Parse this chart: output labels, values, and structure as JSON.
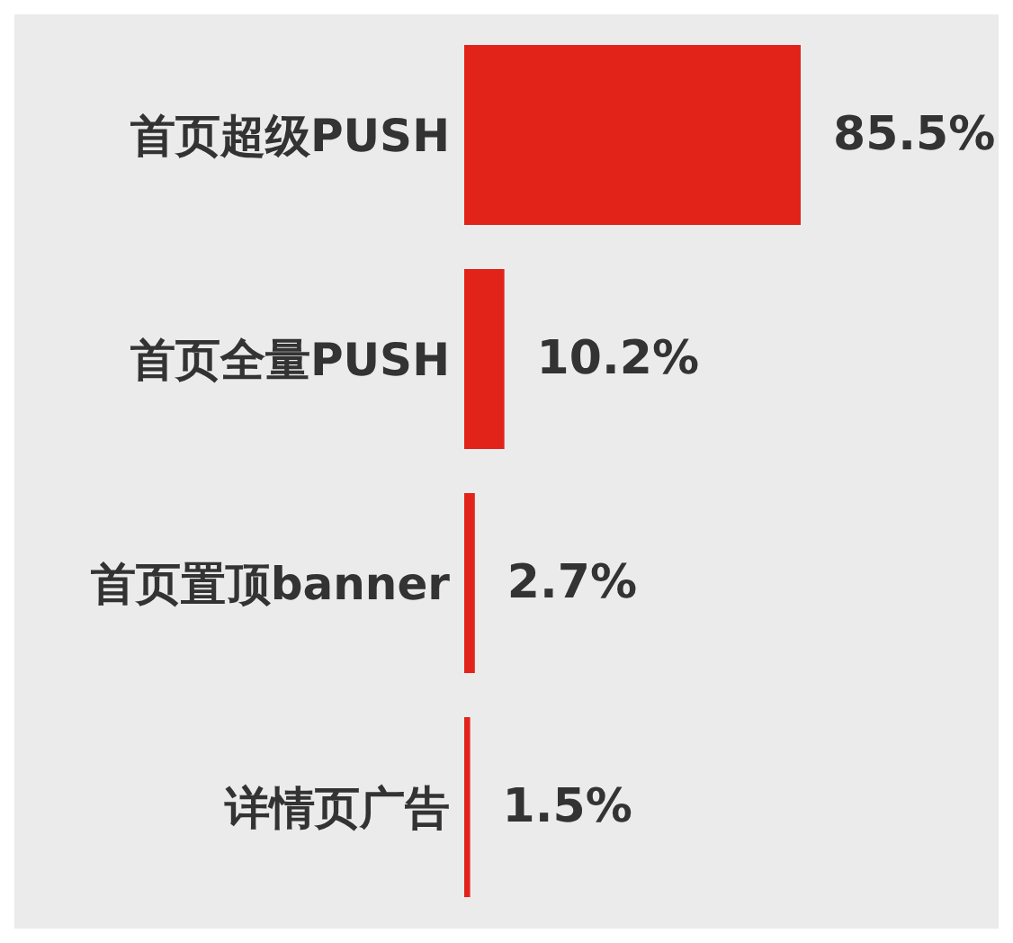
{
  "chart_data": {
    "type": "bar",
    "orientation": "horizontal",
    "categories": [
      "首页超级PUSH",
      "首页全量PUSH",
      "首页置顶banner",
      "详情页广告"
    ],
    "values": [
      85.5,
      10.2,
      2.7,
      1.5
    ],
    "color": "#e2231a",
    "value_labels": [
      "85.5%",
      "10.2%",
      "2.7%",
      "1.5%"
    ],
    "grid": false,
    "legend": false
  }
}
